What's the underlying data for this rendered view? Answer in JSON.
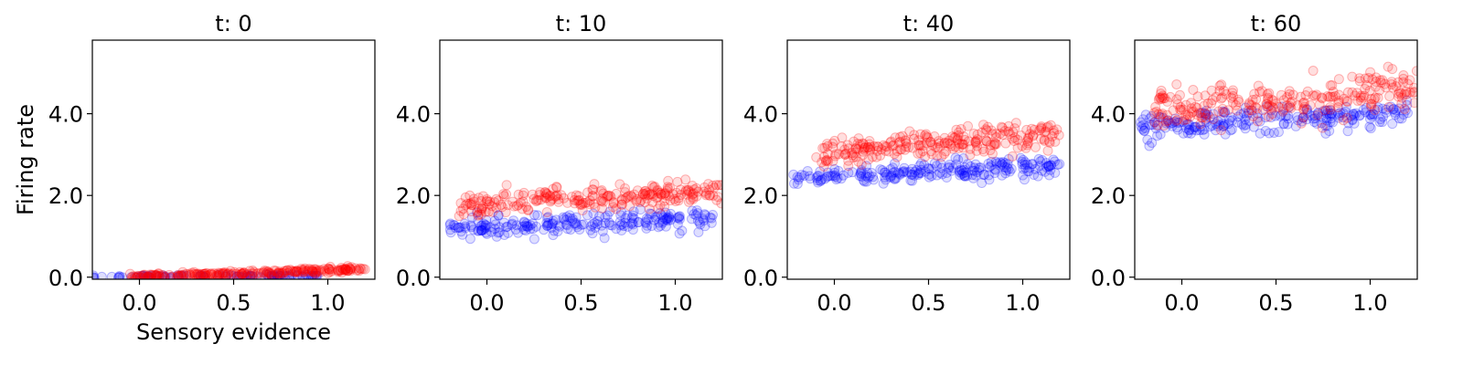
{
  "chart_data": [
    {
      "type": "scatter",
      "title": "t: 0",
      "xlabel": "Sensory evidence",
      "ylabel": "Firing rate",
      "xlim": [
        -0.25,
        1.25
      ],
      "ylim": [
        -0.05,
        5.8
      ],
      "xticks": [
        "0.0",
        "0.5",
        "1.0"
      ],
      "yticks": [
        "0.0",
        "2.0",
        "4.0"
      ],
      "grid": false,
      "series": [
        {
          "color": "#0000ff",
          "x_range": [
            -0.25,
            0.95
          ],
          "trend": [
            0.0,
            0.04
          ],
          "spread": 0.02,
          "points": 110
        },
        {
          "color": "#ff0000",
          "x_range": [
            -0.05,
            1.2
          ],
          "trend": [
            0.0,
            0.2
          ],
          "spread": 0.03,
          "points": 240
        }
      ]
    },
    {
      "type": "scatter",
      "title": "t: 10",
      "xlabel": "",
      "ylabel": "",
      "xlim": [
        -0.25,
        1.25
      ],
      "ylim": [
        -0.05,
        5.8
      ],
      "xticks": [
        "0.0",
        "0.5",
        "1.0"
      ],
      "yticks": [
        "0.0",
        "2.0",
        "4.0"
      ],
      "grid": false,
      "series": [
        {
          "color": "#0000ff",
          "x_range": [
            -0.2,
            1.2
          ],
          "trend": [
            1.15,
            1.45
          ],
          "spread": 0.13,
          "points": 220
        },
        {
          "color": "#ff0000",
          "x_range": [
            -0.15,
            1.25
          ],
          "trend": [
            1.75,
            2.1
          ],
          "spread": 0.14,
          "points": 240
        }
      ]
    },
    {
      "type": "scatter",
      "title": "t: 40",
      "xlabel": "",
      "ylabel": "",
      "xlim": [
        -0.25,
        1.25
      ],
      "ylim": [
        -0.05,
        5.8
      ],
      "xticks": [
        "0.0",
        "0.5",
        "1.0"
      ],
      "yticks": [
        "0.0",
        "2.0",
        "4.0"
      ],
      "grid": false,
      "series": [
        {
          "color": "#0000ff",
          "x_range": [
            -0.22,
            1.2
          ],
          "trend": [
            2.4,
            2.75
          ],
          "spread": 0.12,
          "points": 220
        },
        {
          "color": "#ff0000",
          "x_range": [
            -0.1,
            1.2
          ],
          "trend": [
            3.0,
            3.5
          ],
          "spread": 0.17,
          "points": 240
        }
      ]
    },
    {
      "type": "scatter",
      "title": "t: 60",
      "xlabel": "",
      "ylabel": "",
      "xlim": [
        -0.25,
        1.25
      ],
      "ylim": [
        -0.05,
        5.8
      ],
      "xticks": [
        "0.0",
        "0.5",
        "1.0"
      ],
      "yticks": [
        "0.0",
        "2.0",
        "4.0"
      ],
      "grid": false,
      "series": [
        {
          "color": "#0000ff",
          "x_range": [
            -0.22,
            1.2
          ],
          "trend": [
            3.7,
            4.0
          ],
          "spread": 0.15,
          "points": 220
        },
        {
          "color": "#ff0000",
          "x_range": [
            -0.15,
            1.25
          ],
          "trend": [
            4.1,
            4.55
          ],
          "spread": 0.25,
          "points": 240
        }
      ]
    }
  ]
}
